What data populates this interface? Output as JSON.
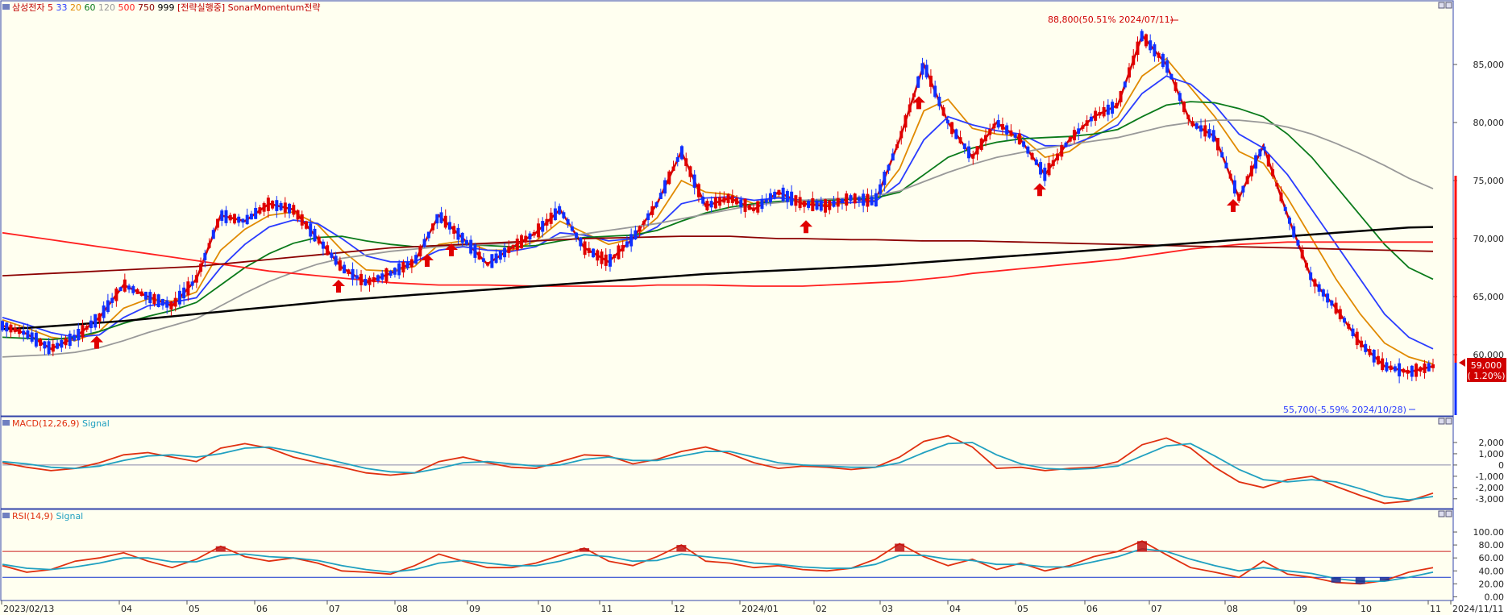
{
  "legend": {
    "main": [
      {
        "text": "삼성전자",
        "color": "#c00000"
      },
      {
        "text": "5",
        "color": "#d00000"
      },
      {
        "text": "33",
        "color": "#2a3cff"
      },
      {
        "text": "20",
        "color": "#e08a00"
      },
      {
        "text": "60",
        "color": "#0a7a1a"
      },
      {
        "text": "120",
        "color": "#999999"
      },
      {
        "text": "500",
        "color": "#ff2020"
      },
      {
        "text": "750",
        "color": "#8b0000"
      },
      {
        "text": "999",
        "color": "#000000"
      },
      {
        "text": "[전략실행중] SonarMomentum전략",
        "color": "#c00000"
      }
    ],
    "macd": [
      {
        "text": "MACD(12,26,9)",
        "color": "#e03010"
      },
      {
        "text": "Signal",
        "color": "#20a0c0"
      }
    ],
    "rsi": [
      {
        "text": "RSI(14,9)",
        "color": "#e03010"
      },
      {
        "text": "Signal",
        "color": "#20a0c0"
      }
    ]
  },
  "annotations": {
    "high": "88,800(50.51% 2024/07/11)",
    "low": "55,700(-5.59% 2024/10/28)",
    "last_price": "59,000",
    "last_change": "( 1.20%)"
  },
  "xaxis": {
    "labels": [
      "2023/02/13",
      "04",
      "05",
      "06",
      "07",
      "08",
      "09",
      "10",
      "11",
      "12",
      "2024/01",
      "02",
      "03",
      "04",
      "05",
      "06",
      "07",
      "08",
      "09",
      "10",
      "11",
      "2024/11/11"
    ]
  },
  "chart_data": [
    {
      "type": "candlestick",
      "title": "삼성전자",
      "yticks": [
        60000,
        65000,
        70000,
        75000,
        80000,
        85000
      ],
      "yticklabels": [
        "60,000",
        "65,000",
        "70,000",
        "75,000",
        "80,000",
        "85,000"
      ],
      "ylim": [
        55000,
        90000
      ],
      "series": [
        {
          "name": "5",
          "color": "#d00000",
          "values": [
            62500,
            61800,
            60500,
            61500,
            63200,
            66000,
            65000,
            64200,
            66500,
            72000,
            71500,
            73000,
            72500,
            70000,
            67500,
            66200,
            67000,
            68000,
            72000,
            70000,
            67800,
            69200,
            70500,
            72500,
            69200,
            68000,
            70000,
            73000,
            77500,
            72800,
            73500,
            72500,
            74000,
            73000,
            72800,
            73500,
            73200,
            78500,
            85000,
            80000,
            77000,
            80000,
            78500,
            75500,
            78500,
            80500,
            81500,
            87500,
            85000,
            80000,
            78800,
            73500,
            78000,
            72000,
            66500,
            64000,
            61000,
            59000,
            58500,
            59000
          ]
        },
        {
          "name": "20",
          "color": "#e08a00",
          "values": [
            63000,
            62300,
            61500,
            61200,
            62000,
            64000,
            64800,
            64600,
            65400,
            69000,
            70800,
            72000,
            72300,
            71200,
            69000,
            67300,
            67200,
            67600,
            69500,
            69800,
            69000,
            69000,
            69800,
            71500,
            70500,
            69500,
            70000,
            71800,
            75000,
            74000,
            73800,
            73000,
            73600,
            73200,
            72900,
            73100,
            73300,
            76000,
            81000,
            82000,
            79500,
            79000,
            78800,
            77000,
            77500,
            79000,
            80500,
            84000,
            85500,
            83000,
            80500,
            77500,
            76500,
            73500,
            70000,
            66500,
            63500,
            61000,
            59800,
            59200
          ]
        },
        {
          "name": "33",
          "color": "#2a3cff",
          "values": [
            63200,
            62600,
            61900,
            61500,
            61700,
            63200,
            64200,
            64500,
            64900,
            67500,
            69500,
            71000,
            71600,
            71300,
            70000,
            68500,
            68000,
            68000,
            69000,
            69300,
            69000,
            68900,
            69300,
            70500,
            70300,
            69800,
            70000,
            71000,
            73000,
            73500,
            73600,
            73300,
            73500,
            73300,
            73100,
            73100,
            73200,
            74800,
            78500,
            80500,
            79800,
            79300,
            79000,
            78000,
            78000,
            78800,
            79800,
            82500,
            84000,
            83300,
            81500,
            79000,
            77800,
            75500,
            72500,
            69500,
            66500,
            63500,
            61500,
            60500
          ]
        },
        {
          "name": "60",
          "color": "#0a7a1a",
          "values": [
            61500,
            61400,
            61300,
            61500,
            62000,
            62700,
            63300,
            63800,
            64500,
            66000,
            67500,
            68700,
            69600,
            70100,
            70200,
            69800,
            69500,
            69300,
            69400,
            69500,
            69400,
            69300,
            69400,
            69800,
            70100,
            70200,
            70300,
            70700,
            71500,
            72200,
            72700,
            73000,
            73200,
            73300,
            73300,
            73400,
            73500,
            74000,
            75500,
            77000,
            77800,
            78300,
            78600,
            78700,
            78800,
            79000,
            79400,
            80500,
            81500,
            81800,
            81700,
            81200,
            80500,
            79000,
            77000,
            74500,
            72000,
            69500,
            67500,
            66500
          ]
        },
        {
          "name": "120",
          "color": "#999999",
          "values": [
            59800,
            59900,
            60000,
            60200,
            60600,
            61200,
            61900,
            62500,
            63100,
            64200,
            65300,
            66300,
            67100,
            67800,
            68300,
            68600,
            68900,
            69100,
            69300,
            69400,
            69500,
            69600,
            69800,
            70100,
            70400,
            70700,
            71000,
            71300,
            71700,
            72100,
            72500,
            72900,
            73100,
            73300,
            73400,
            73500,
            73700,
            74100,
            74900,
            75700,
            76400,
            77000,
            77400,
            77800,
            78100,
            78400,
            78700,
            79200,
            79700,
            80000,
            80200,
            80200,
            80000,
            79600,
            79000,
            78200,
            77300,
            76300,
            75200,
            74300
          ]
        },
        {
          "name": "500",
          "color": "#ff2020",
          "values": [
            70500,
            70200,
            69900,
            69600,
            69300,
            69000,
            68700,
            68400,
            68100,
            67800,
            67500,
            67200,
            67000,
            66800,
            66600,
            66400,
            66200,
            66100,
            66000,
            66000,
            66000,
            65950,
            65900,
            65900,
            65900,
            65900,
            65900,
            66000,
            66000,
            66000,
            65950,
            65900,
            65900,
            65900,
            66000,
            66100,
            66200,
            66300,
            66500,
            66700,
            67000,
            67200,
            67400,
            67600,
            67800,
            68000,
            68200,
            68500,
            68800,
            69100,
            69300,
            69500,
            69600,
            69700,
            69700,
            69700,
            69700,
            69700,
            69700,
            69700
          ]
        },
        {
          "name": "750",
          "color": "#8b0000",
          "values": [
            66800,
            66900,
            67000,
            67100,
            67200,
            67300,
            67400,
            67500,
            67600,
            67800,
            68000,
            68200,
            68400,
            68600,
            68800,
            69000,
            69200,
            69300,
            69400,
            69500,
            69600,
            69700,
            69800,
            69900,
            70000,
            70050,
            70100,
            70150,
            70200,
            70200,
            70200,
            70100,
            70000,
            70000,
            69950,
            69900,
            69900,
            69850,
            69800,
            69800,
            69800,
            69750,
            69700,
            69650,
            69600,
            69550,
            69500,
            69450,
            69400,
            69350,
            69300,
            69300,
            69250,
            69200,
            69150,
            69100,
            69050,
            69000,
            68950,
            68900
          ]
        },
        {
          "name": "999",
          "color": "#000000",
          "values": [
            62200,
            62300,
            62450,
            62600,
            62750,
            62900,
            63100,
            63300,
            63500,
            63700,
            63900,
            64100,
            64300,
            64500,
            64700,
            64850,
            65000,
            65150,
            65300,
            65450,
            65600,
            65750,
            65900,
            66050,
            66200,
            66350,
            66500,
            66650,
            66800,
            66950,
            67050,
            67150,
            67250,
            67350,
            67450,
            67550,
            67650,
            67800,
            67950,
            68100,
            68250,
            68400,
            68550,
            68700,
            68850,
            69000,
            69150,
            69300,
            69450,
            69600,
            69750,
            69900,
            70050,
            70200,
            70350,
            70500,
            70650,
            70800,
            70950,
            71000
          ]
        }
      ]
    },
    {
      "type": "line",
      "title": "MACD(12,26,9)",
      "yticks": [
        2000,
        1000,
        0,
        -1000,
        -2000,
        -3000
      ],
      "yticklabels": [
        "2,000",
        "1,000",
        "0",
        "-1,000",
        "-2,000",
        "-3,000"
      ],
      "ylim": [
        -3800,
        3000
      ],
      "series": [
        {
          "name": "MACD",
          "color": "#e03010",
          "values": [
            200,
            -200,
            -500,
            -300,
            200,
            900,
            1100,
            700,
            300,
            1500,
            1900,
            1500,
            700,
            200,
            -200,
            -700,
            -900,
            -700,
            300,
            700,
            200,
            -200,
            -300,
            300,
            900,
            800,
            100,
            500,
            1200,
            1600,
            1000,
            200,
            -300,
            -100,
            -200,
            -400,
            -200,
            700,
            2100,
            2600,
            1600,
            -300,
            -200,
            -500,
            -300,
            -200,
            300,
            1800,
            2400,
            1500,
            -200,
            -1500,
            -2000,
            -1300,
            -1000,
            -1900,
            -2700,
            -3400,
            -3200,
            -2500
          ]
        },
        {
          "name": "Signal",
          "color": "#20a0c0",
          "values": [
            300,
            100,
            -200,
            -300,
            -100,
            400,
            800,
            900,
            700,
            1000,
            1500,
            1600,
            1200,
            700,
            200,
            -300,
            -600,
            -700,
            -300,
            200,
            300,
            100,
            -100,
            0,
            500,
            700,
            400,
            400,
            800,
            1200,
            1200,
            700,
            200,
            0,
            -100,
            -200,
            -200,
            200,
            1100,
            1900,
            2000,
            900,
            100,
            -300,
            -400,
            -300,
            -100,
            800,
            1700,
            1900,
            800,
            -400,
            -1300,
            -1500,
            -1300,
            -1500,
            -2100,
            -2800,
            -3100,
            -2800
          ]
        }
      ]
    },
    {
      "type": "line",
      "title": "RSI(14,9)",
      "yticks": [
        100,
        80,
        60,
        40,
        20,
        0
      ],
      "yticklabels": [
        "100.00",
        "80.00",
        "60.00",
        "40.00",
        "20.00",
        "0.00"
      ],
      "ylim": [
        -2,
        110
      ],
      "series": [
        {
          "name": "RSI",
          "color": "#e03010",
          "values": [
            48,
            38,
            42,
            55,
            60,
            68,
            55,
            45,
            58,
            78,
            62,
            55,
            60,
            52,
            40,
            38,
            35,
            48,
            66,
            55,
            45,
            45,
            52,
            64,
            75,
            55,
            48,
            62,
            80,
            55,
            52,
            45,
            48,
            42,
            40,
            44,
            58,
            82,
            62,
            48,
            58,
            42,
            52,
            40,
            48,
            62,
            70,
            86,
            65,
            45,
            38,
            30,
            55,
            35,
            30,
            22,
            20,
            25,
            38,
            45
          ]
        },
        {
          "name": "Signal",
          "color": "#20a0c0",
          "values": [
            50,
            44,
            42,
            46,
            52,
            60,
            60,
            54,
            54,
            64,
            66,
            62,
            60,
            56,
            48,
            42,
            38,
            42,
            52,
            56,
            52,
            48,
            48,
            55,
            65,
            62,
            55,
            56,
            66,
            62,
            58,
            52,
            50,
            46,
            44,
            44,
            50,
            64,
            64,
            58,
            56,
            50,
            50,
            46,
            46,
            54,
            62,
            74,
            70,
            58,
            48,
            40,
            45,
            40,
            36,
            28,
            24,
            24,
            30,
            38
          ]
        }
      ]
    }
  ]
}
